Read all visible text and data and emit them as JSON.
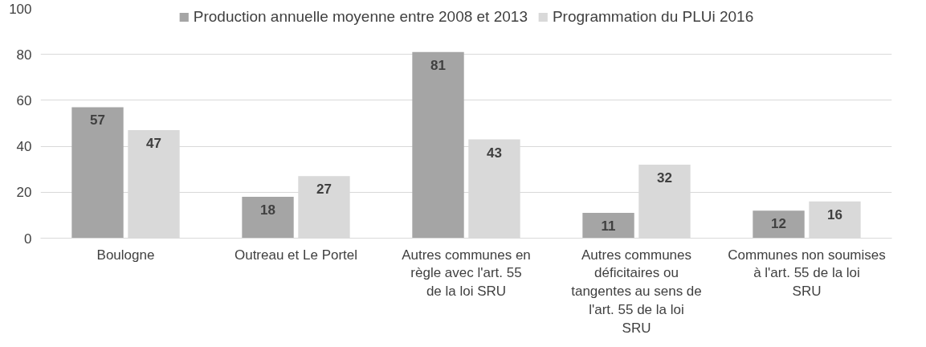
{
  "chart_data": {
    "type": "bar",
    "categories": [
      "Boulogne",
      "Outreau et Le Portel",
      "Autres communes en règle avec l'art. 55 de la loi SRU",
      "Autres communes déficitaires ou tangentes au sens de l'art. 55 de la loi SRU",
      "Communes non soumises à l'art. 55 de la loi SRU"
    ],
    "series": [
      {
        "name": "Production annuelle moyenne entre 2008 et 2013",
        "color": "#a5a5a5",
        "values": [
          57,
          18,
          81,
          11,
          12
        ]
      },
      {
        "name": "Programmation du PLUi 2016",
        "color": "#d9d9d9",
        "values": [
          47,
          27,
          43,
          32,
          16
        ]
      }
    ],
    "ylim": [
      0,
      100
    ],
    "yticks": [
      0,
      20,
      40,
      60,
      80,
      100
    ],
    "grid": "y",
    "legend": "top",
    "data_labels": true
  }
}
